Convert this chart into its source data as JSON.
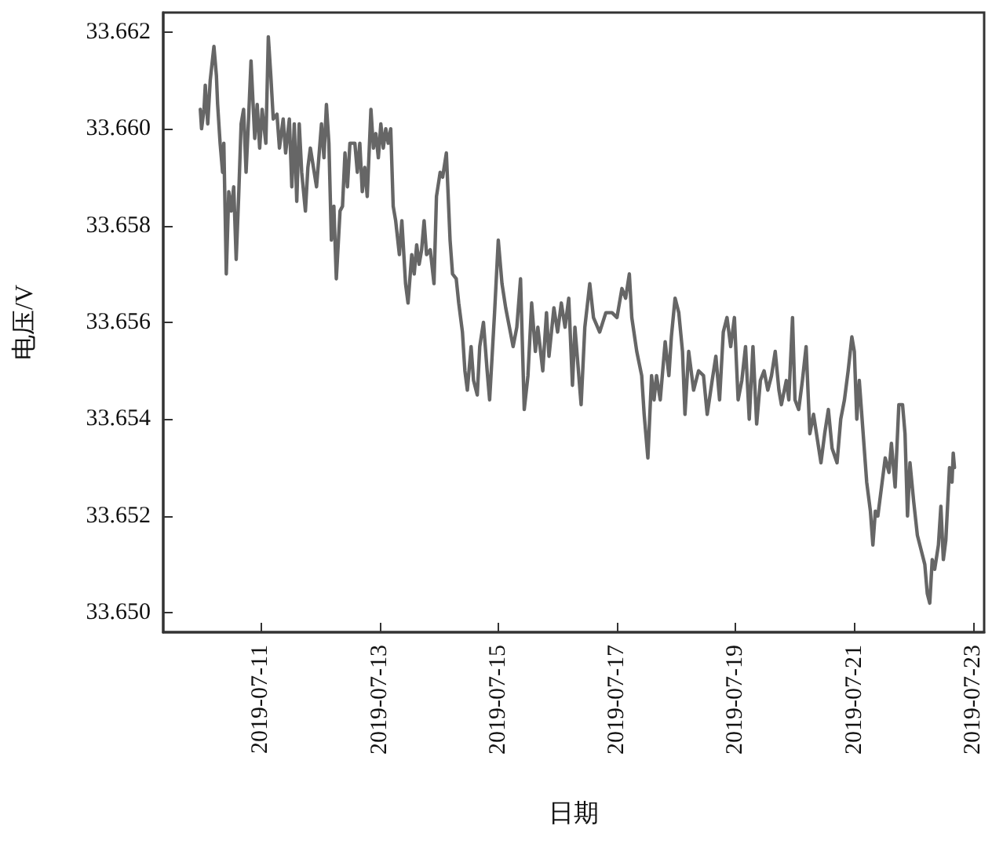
{
  "chart_data": {
    "type": "line",
    "xlabel": "日期",
    "ylabel": "电压/V",
    "grid": false,
    "marker": "none",
    "line_style": "solid",
    "xlim": [
      "2019-07-09T08:30",
      "2019-07-23T04:30"
    ],
    "xticks": [
      "2019-07-11",
      "2019-07-13",
      "2019-07-15",
      "2019-07-17",
      "2019-07-19",
      "2019-07-21",
      "2019-07-23"
    ],
    "ylim": [
      33.6496,
      33.6624
    ],
    "yticks": [
      {
        "value": 33.65,
        "label": "33.650"
      },
      {
        "value": 33.652,
        "label": "33.652"
      },
      {
        "value": 33.654,
        "label": "33.654"
      },
      {
        "value": 33.656,
        "label": "33.656"
      },
      {
        "value": 33.658,
        "label": "33.658"
      },
      {
        "value": 33.66,
        "label": "33.660"
      },
      {
        "value": 33.662,
        "label": "33.662"
      }
    ],
    "series": [
      {
        "color": "#666666",
        "x": [
          "2019-07-09T23:30",
          "2019-07-10T00:00",
          "2019-07-10T01:00",
          "2019-07-10T01:30",
          "2019-07-10T02:30",
          "2019-07-10T03:30",
          "2019-07-10T05:00",
          "2019-07-10T06:00",
          "2019-07-10T06:30",
          "2019-07-10T07:30",
          "2019-07-10T08:30",
          "2019-07-10T09:00",
          "2019-07-10T10:00",
          "2019-07-10T11:00",
          "2019-07-10T12:00",
          "2019-07-10T13:00",
          "2019-07-10T14:00",
          "2019-07-10T15:00",
          "2019-07-10T16:00",
          "2019-07-10T17:00",
          "2019-07-10T18:00",
          "2019-07-10T19:00",
          "2019-07-10T20:00",
          "2019-07-10T21:30",
          "2019-07-10T22:30",
          "2019-07-10T23:30",
          "2019-07-11T00:30",
          "2019-07-11T02:00",
          "2019-07-11T03:00",
          "2019-07-11T04:00",
          "2019-07-11T05:00",
          "2019-07-11T06:30",
          "2019-07-11T07:30",
          "2019-07-11T09:00",
          "2019-07-11T10:00",
          "2019-07-11T11:30",
          "2019-07-11T12:30",
          "2019-07-11T13:30",
          "2019-07-11T14:30",
          "2019-07-11T15:30",
          "2019-07-11T16:30",
          "2019-07-11T18:00",
          "2019-07-11T19:00",
          "2019-07-11T20:00",
          "2019-07-11T22:30",
          "2019-07-12T00:30",
          "2019-07-12T01:30",
          "2019-07-12T02:30",
          "2019-07-12T03:30",
          "2019-07-12T04:30",
          "2019-07-12T05:30",
          "2019-07-12T06:30",
          "2019-07-12T08:00",
          "2019-07-12T09:00",
          "2019-07-12T10:00",
          "2019-07-12T11:00",
          "2019-07-12T12:00",
          "2019-07-12T14:00",
          "2019-07-12T15:00",
          "2019-07-12T16:00",
          "2019-07-12T17:00",
          "2019-07-12T18:00",
          "2019-07-12T19:00",
          "2019-07-12T20:30",
          "2019-07-12T21:30",
          "2019-07-12T22:30",
          "2019-07-12T23:30",
          "2019-07-13T00:30",
          "2019-07-13T01:30",
          "2019-07-13T02:30",
          "2019-07-13T03:30",
          "2019-07-13T04:30",
          "2019-07-13T05:30",
          "2019-07-13T06:30",
          "2019-07-13T08:00",
          "2019-07-13T09:00",
          "2019-07-13T10:30",
          "2019-07-13T11:30",
          "2019-07-13T13:00",
          "2019-07-13T14:00",
          "2019-07-13T15:00",
          "2019-07-13T16:00",
          "2019-07-13T17:00",
          "2019-07-13T18:00",
          "2019-07-13T19:00",
          "2019-07-13T20:30",
          "2019-07-13T22:00",
          "2019-07-13T23:00",
          "2019-07-14T00:30",
          "2019-07-14T01:30",
          "2019-07-14T03:00",
          "2019-07-14T04:30",
          "2019-07-14T05:30",
          "2019-07-14T07:00",
          "2019-07-14T08:00",
          "2019-07-14T09:30",
          "2019-07-14T10:30",
          "2019-07-14T11:30",
          "2019-07-14T13:00",
          "2019-07-14T14:00",
          "2019-07-14T15:30",
          "2019-07-14T16:30",
          "2019-07-14T18:00",
          "2019-07-14T19:30",
          "2019-07-14T20:30",
          "2019-07-14T22:30",
          "2019-07-15T00:00",
          "2019-07-15T01:30",
          "2019-07-15T03:00",
          "2019-07-15T04:30",
          "2019-07-15T06:00",
          "2019-07-15T07:30",
          "2019-07-15T09:00",
          "2019-07-15T10:30",
          "2019-07-15T12:00",
          "2019-07-15T13:30",
          "2019-07-15T15:00",
          "2019-07-15T16:00",
          "2019-07-15T18:00",
          "2019-07-15T19:30",
          "2019-07-15T20:30",
          "2019-07-15T22:30",
          "2019-07-16T00:00",
          "2019-07-16T01:30",
          "2019-07-16T03:00",
          "2019-07-16T04:30",
          "2019-07-16T06:00",
          "2019-07-16T07:00",
          "2019-07-16T09:30",
          "2019-07-16T11:00",
          "2019-07-16T13:00",
          "2019-07-16T14:30",
          "2019-07-16T17:00",
          "2019-07-16T19:30",
          "2019-07-16T22:00",
          "2019-07-17T00:00",
          "2019-07-17T02:00",
          "2019-07-17T03:30",
          "2019-07-17T05:00",
          "2019-07-17T06:00",
          "2019-07-17T08:00",
          "2019-07-17T10:00",
          "2019-07-17T11:00",
          "2019-07-17T12:30",
          "2019-07-17T14:00",
          "2019-07-17T15:00",
          "2019-07-17T16:00",
          "2019-07-17T17:30",
          "2019-07-17T19:30",
          "2019-07-17T21:00",
          "2019-07-17T22:00",
          "2019-07-17T23:30",
          "2019-07-18T01:00",
          "2019-07-18T02:30",
          "2019-07-18T03:30",
          "2019-07-18T05:00",
          "2019-07-18T07:00",
          "2019-07-18T09:00",
          "2019-07-18T11:00",
          "2019-07-18T12:30",
          "2019-07-18T14:30",
          "2019-07-18T16:00",
          "2019-07-18T17:30",
          "2019-07-18T19:00",
          "2019-07-18T20:30",
          "2019-07-18T22:00",
          "2019-07-18T23:30",
          "2019-07-19T01:00",
          "2019-07-19T02:30",
          "2019-07-19T04:00",
          "2019-07-19T05:30",
          "2019-07-19T07:00",
          "2019-07-19T08:30",
          "2019-07-19T10:00",
          "2019-07-19T11:30",
          "2019-07-19T13:00",
          "2019-07-19T14:30",
          "2019-07-19T16:00",
          "2019-07-19T17:30",
          "2019-07-19T18:30",
          "2019-07-19T20:30",
          "2019-07-19T21:30",
          "2019-07-19T23:00",
          "2019-07-20T00:00",
          "2019-07-20T01:30",
          "2019-07-20T03:00",
          "2019-07-20T04:30",
          "2019-07-20T06:00",
          "2019-07-20T07:30",
          "2019-07-20T09:00",
          "2019-07-20T10:30",
          "2019-07-20T12:00",
          "2019-07-20T13:30",
          "2019-07-20T15:00",
          "2019-07-20T17:00",
          "2019-07-20T18:30",
          "2019-07-20T20:00",
          "2019-07-20T21:30",
          "2019-07-20T23:00",
          "2019-07-21T00:00",
          "2019-07-21T01:00",
          "2019-07-21T02:00",
          "2019-07-21T04:00",
          "2019-07-21T05:00",
          "2019-07-21T06:30",
          "2019-07-21T07:30",
          "2019-07-21T08:30",
          "2019-07-21T09:30",
          "2019-07-21T11:00",
          "2019-07-21T12:30",
          "2019-07-21T14:00",
          "2019-07-21T15:00",
          "2019-07-21T16:30",
          "2019-07-21T18:00",
          "2019-07-21T19:30",
          "2019-07-21T20:30",
          "2019-07-21T21:30",
          "2019-07-21T22:30",
          "2019-07-22T00:00",
          "2019-07-22T01:30",
          "2019-07-22T03:00",
          "2019-07-22T04:30",
          "2019-07-22T05:30",
          "2019-07-22T06:30",
          "2019-07-22T07:30",
          "2019-07-22T08:30",
          "2019-07-22T10:00",
          "2019-07-22T11:00",
          "2019-07-22T12:00",
          "2019-07-22T13:00",
          "2019-07-22T14:30",
          "2019-07-22T15:30",
          "2019-07-22T16:00",
          "2019-07-22T16:30"
        ],
        "values": [
          33.6604,
          33.66,
          33.6604,
          33.6609,
          33.6601,
          33.661,
          33.6617,
          33.6611,
          33.6605,
          33.6597,
          33.6591,
          33.6597,
          33.657,
          33.6587,
          33.6583,
          33.6588,
          33.6573,
          33.6586,
          33.6601,
          33.6604,
          33.6591,
          33.6602,
          33.6614,
          33.6598,
          33.6605,
          33.6596,
          33.6604,
          33.6597,
          33.6619,
          33.6611,
          33.6602,
          33.6603,
          33.6596,
          33.6602,
          33.6595,
          33.6602,
          33.6588,
          33.6601,
          33.6585,
          33.6601,
          33.6591,
          33.6583,
          33.6592,
          33.6596,
          33.6588,
          33.6601,
          33.6594,
          33.6605,
          33.6597,
          33.6577,
          33.6584,
          33.6569,
          33.6583,
          33.6584,
          33.6595,
          33.6588,
          33.6597,
          33.6597,
          33.6591,
          33.6597,
          33.6587,
          33.6592,
          33.6586,
          33.6604,
          33.6596,
          33.6599,
          33.6594,
          33.6601,
          33.6596,
          33.66,
          33.6597,
          33.66,
          33.6584,
          33.6581,
          33.6574,
          33.6581,
          33.6568,
          33.6564,
          33.6574,
          33.657,
          33.6576,
          33.6572,
          33.6575,
          33.6581,
          33.6574,
          33.6575,
          33.6568,
          33.6586,
          33.6591,
          33.659,
          33.6595,
          33.6577,
          33.657,
          33.6569,
          33.6564,
          33.6558,
          33.655,
          33.6546,
          33.6555,
          33.6548,
          33.6545,
          33.6555,
          33.656,
          33.655,
          33.6544,
          33.6562,
          33.6577,
          33.6568,
          33.6563,
          33.6559,
          33.6555,
          33.6559,
          33.6569,
          33.6542,
          33.6549,
          33.6564,
          33.6554,
          33.6559,
          33.655,
          33.6562,
          33.6553,
          33.6563,
          33.6558,
          33.6564,
          33.6559,
          33.6565,
          33.6547,
          33.6559,
          33.6543,
          33.6559,
          33.6568,
          33.6561,
          33.6558,
          33.6562,
          33.6562,
          33.6561,
          33.6567,
          33.6565,
          33.657,
          33.6561,
          33.6554,
          33.6549,
          33.6541,
          33.6532,
          33.6549,
          33.6544,
          33.6549,
          33.6544,
          33.6556,
          33.6549,
          33.6557,
          33.6565,
          33.6562,
          33.6554,
          33.6541,
          33.6554,
          33.6546,
          33.655,
          33.6549,
          33.6541,
          33.6548,
          33.6553,
          33.6544,
          33.6558,
          33.6561,
          33.6555,
          33.6561,
          33.6544,
          33.6548,
          33.6555,
          33.654,
          33.6555,
          33.6539,
          33.6548,
          33.655,
          33.6546,
          33.6549,
          33.6554,
          33.6546,
          33.6543,
          33.6548,
          33.6544,
          33.6561,
          33.6544,
          33.6542,
          33.6548,
          33.6555,
          33.6537,
          33.6541,
          33.6536,
          33.6531,
          33.6537,
          33.6542,
          33.6534,
          33.6531,
          33.654,
          33.6544,
          33.655,
          33.6557,
          33.6554,
          33.654,
          33.6548,
          33.6534,
          33.6527,
          33.6521,
          33.6514,
          33.6521,
          33.652,
          33.6526,
          33.6532,
          33.6529,
          33.6535,
          33.6526,
          33.6543,
          33.6543,
          33.6537,
          33.652,
          33.6531,
          33.6523,
          33.6516,
          33.6513,
          33.651,
          33.6504,
          33.6502,
          33.6511,
          33.6509,
          33.6514,
          33.6522,
          33.6511,
          33.6515,
          33.653,
          33.6527,
          33.6533,
          33.653
        ]
      }
    ]
  }
}
